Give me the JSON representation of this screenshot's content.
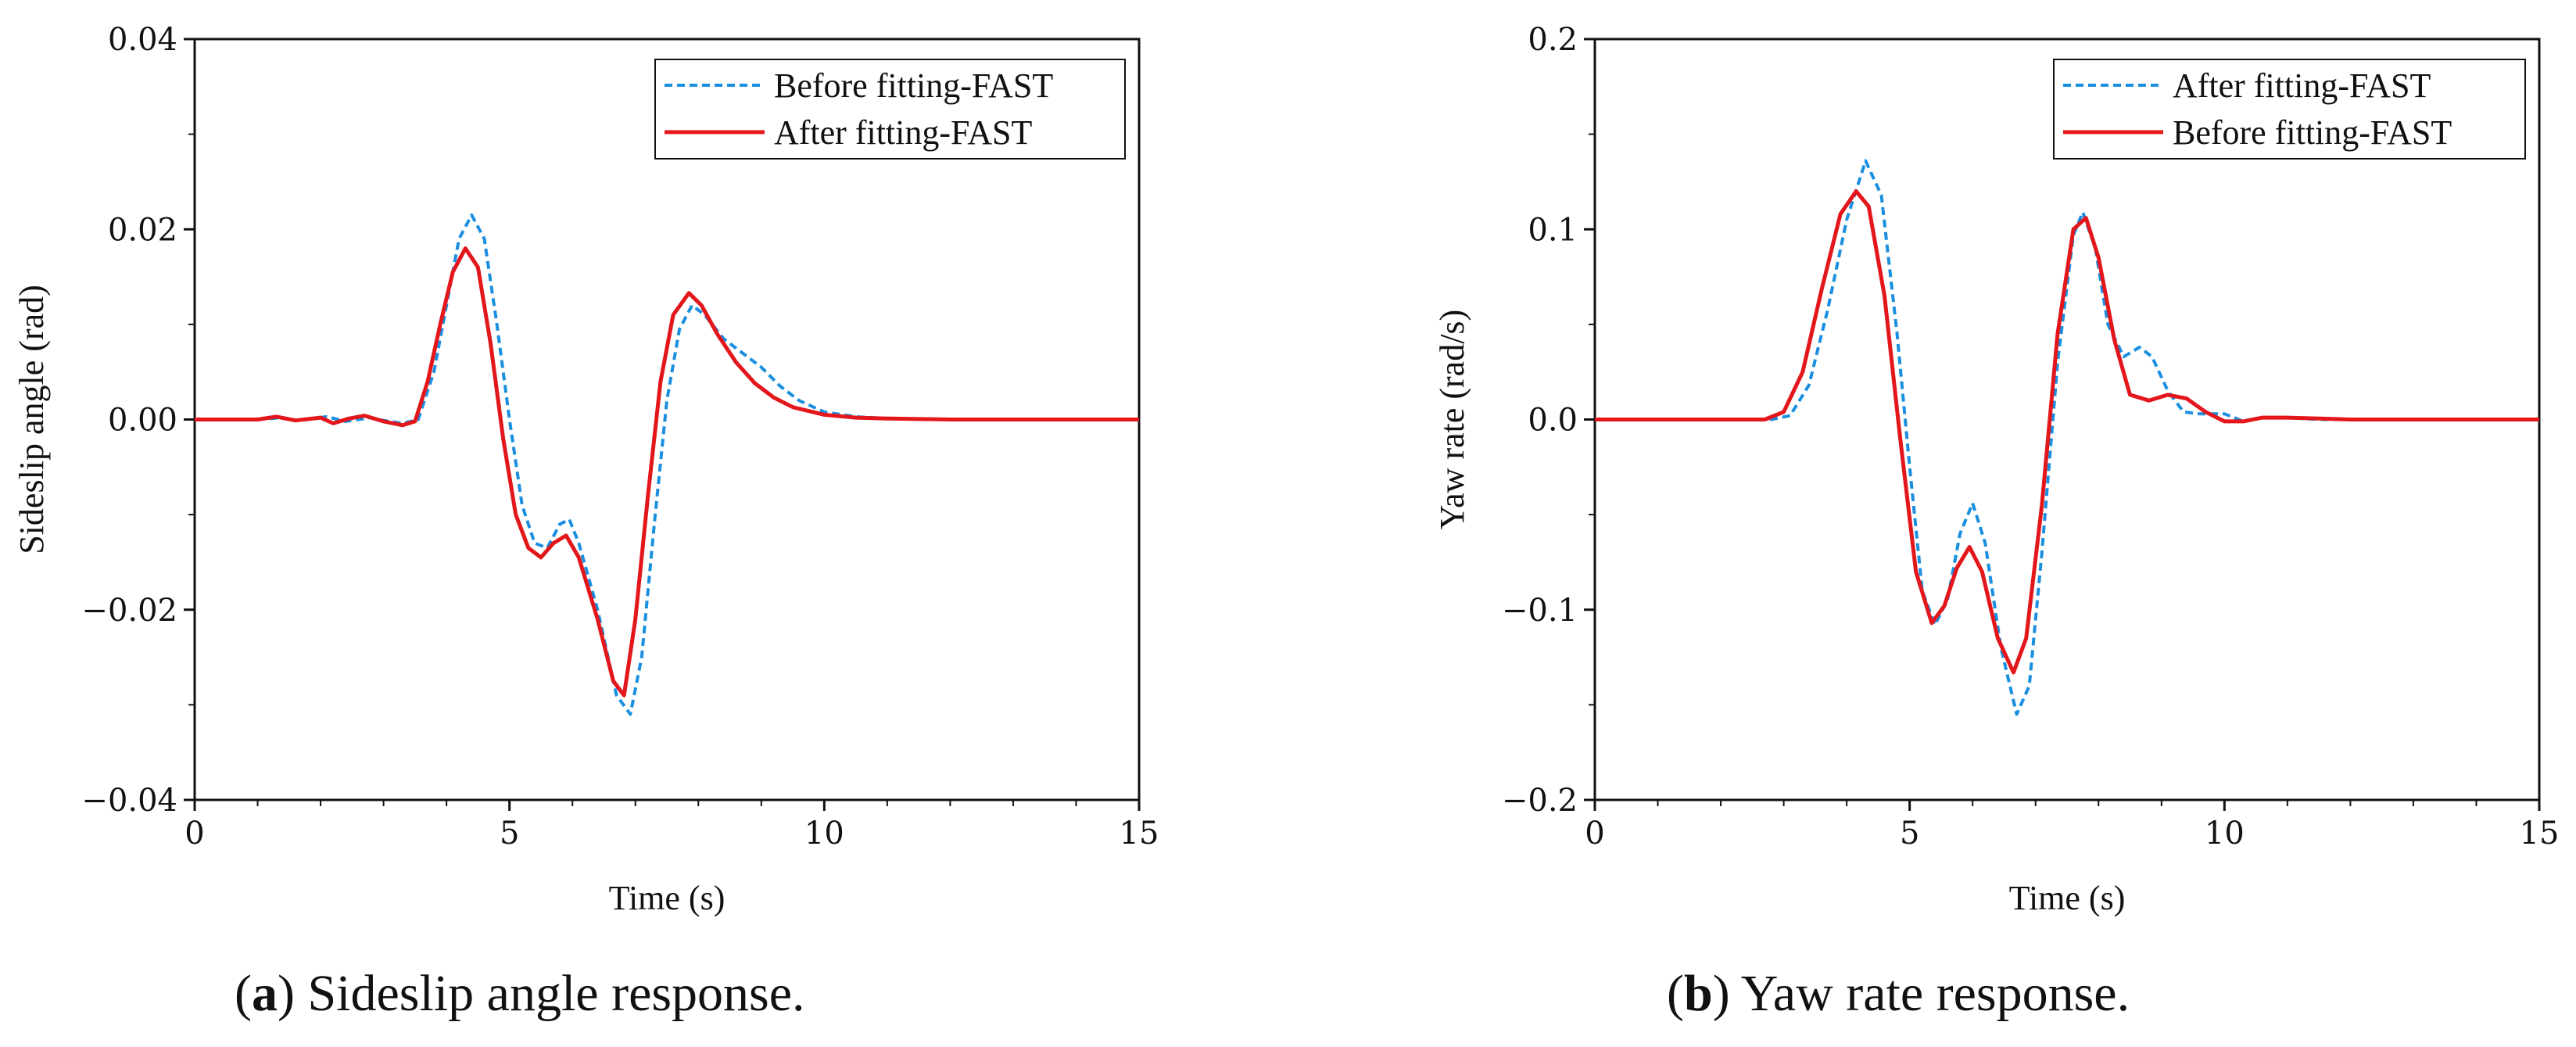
{
  "chart_data": [
    {
      "type": "line",
      "panel": "a",
      "xlabel": "Time (s)",
      "ylabel": "Sideslip angle (rad)",
      "xlim": [
        0,
        15
      ],
      "ylim": [
        -0.04,
        0.04
      ],
      "xticks": [
        0,
        5,
        10,
        15
      ],
      "xtick_labels": [
        "0",
        "5",
        "10",
        "15"
      ],
      "yticks": [
        -0.04,
        -0.02,
        0.0,
        0.02,
        0.04
      ],
      "ytick_labels": [
        "−0.04",
        "−0.02",
        "0.00",
        "0.02",
        "0.04"
      ],
      "legend_position": "top-right",
      "grid": false,
      "caption_letter": "a",
      "caption_text": " Sideslip angle response.",
      "series": [
        {
          "name": "Before fitting-FAST",
          "color": "#1a8fe0",
          "style": "dashed",
          "points": [
            [
              0,
              0
            ],
            [
              1.0,
              0
            ],
            [
              1.4,
              0.0002
            ],
            [
              1.6,
              -0.0001
            ],
            [
              2.1,
              0.0003
            ],
            [
              2.4,
              -0.0002
            ],
            [
              2.8,
              0.0002
            ],
            [
              3.0,
              -0.0001
            ],
            [
              3.3,
              -0.0004
            ],
            [
              3.55,
              0
            ],
            [
              3.8,
              0.005
            ],
            [
              4.0,
              0.012
            ],
            [
              4.2,
              0.019
            ],
            [
              4.4,
              0.0215
            ],
            [
              4.6,
              0.019
            ],
            [
              4.8,
              0.01
            ],
            [
              5.0,
              0.0
            ],
            [
              5.2,
              -0.009
            ],
            [
              5.4,
              -0.013
            ],
            [
              5.6,
              -0.0135
            ],
            [
              5.8,
              -0.011
            ],
            [
              5.95,
              -0.0105
            ],
            [
              6.1,
              -0.013
            ],
            [
              6.4,
              -0.02
            ],
            [
              6.7,
              -0.029
            ],
            [
              6.92,
              -0.031
            ],
            [
              7.1,
              -0.025
            ],
            [
              7.3,
              -0.011
            ],
            [
              7.5,
              0.002
            ],
            [
              7.7,
              0.0095
            ],
            [
              7.9,
              0.012
            ],
            [
              8.1,
              0.011
            ],
            [
              8.4,
              0.0085
            ],
            [
              8.7,
              0.007
            ],
            [
              9.0,
              0.0055
            ],
            [
              9.3,
              0.0035
            ],
            [
              9.6,
              0.002
            ],
            [
              10.0,
              0.0008
            ],
            [
              10.5,
              0.0003
            ],
            [
              11.0,
              0.0001
            ],
            [
              12,
              0
            ],
            [
              15,
              0
            ]
          ]
        },
        {
          "name": "After fitting-FAST",
          "color": "#e3161b",
          "style": "solid",
          "points": [
            [
              0,
              0
            ],
            [
              1.0,
              0
            ],
            [
              1.3,
              0.0003
            ],
            [
              1.6,
              -0.0001
            ],
            [
              2.0,
              0.0002
            ],
            [
              2.2,
              -0.0004
            ],
            [
              2.45,
              0.0001
            ],
            [
              2.7,
              0.0004
            ],
            [
              3.0,
              -0.0002
            ],
            [
              3.3,
              -0.0006
            ],
            [
              3.5,
              -0.0002
            ],
            [
              3.7,
              0.004
            ],
            [
              3.9,
              0.01
            ],
            [
              4.1,
              0.0155
            ],
            [
              4.3,
              0.018
            ],
            [
              4.5,
              0.016
            ],
            [
              4.7,
              0.008
            ],
            [
              4.9,
              -0.002
            ],
            [
              5.1,
              -0.01
            ],
            [
              5.3,
              -0.0135
            ],
            [
              5.5,
              -0.0145
            ],
            [
              5.7,
              -0.013
            ],
            [
              5.9,
              -0.0122
            ],
            [
              6.1,
              -0.0145
            ],
            [
              6.4,
              -0.021
            ],
            [
              6.65,
              -0.0275
            ],
            [
              6.82,
              -0.029
            ],
            [
              7.0,
              -0.021
            ],
            [
              7.2,
              -0.008
            ],
            [
              7.4,
              0.004
            ],
            [
              7.6,
              0.011
            ],
            [
              7.85,
              0.0133
            ],
            [
              8.05,
              0.012
            ],
            [
              8.3,
              0.009
            ],
            [
              8.6,
              0.006
            ],
            [
              8.9,
              0.0038
            ],
            [
              9.2,
              0.0023
            ],
            [
              9.5,
              0.0013
            ],
            [
              10.0,
              0.0005
            ],
            [
              10.5,
              0.0002
            ],
            [
              11.0,
              0.0001
            ],
            [
              12,
              0
            ],
            [
              15,
              0
            ]
          ]
        }
      ]
    },
    {
      "type": "line",
      "panel": "b",
      "xlabel": "Time (s)",
      "ylabel": "Yaw rate (rad/s)",
      "xlim": [
        0,
        15
      ],
      "ylim": [
        -0.2,
        0.2
      ],
      "xticks": [
        0,
        5,
        10,
        15
      ],
      "xtick_labels": [
        "0",
        "5",
        "10",
        "15"
      ],
      "yticks": [
        -0.2,
        -0.1,
        0.0,
        0.1,
        0.2
      ],
      "ytick_labels": [
        "−0.2",
        "−0.1",
        "0.0",
        "0.1",
        "0.2"
      ],
      "legend_position": "top-right",
      "grid": false,
      "caption_letter": "b",
      "caption_text": " Yaw rate response.",
      "series": [
        {
          "name": "After fitting-FAST",
          "color": "#1a8fe0",
          "style": "dashed",
          "points": [
            [
              0,
              0
            ],
            [
              2.8,
              0
            ],
            [
              3.1,
              0.002
            ],
            [
              3.4,
              0.018
            ],
            [
              3.7,
              0.058
            ],
            [
              4.0,
              0.105
            ],
            [
              4.3,
              0.136
            ],
            [
              4.55,
              0.118
            ],
            [
              4.8,
              0.045
            ],
            [
              5.0,
              -0.025
            ],
            [
              5.2,
              -0.09
            ],
            [
              5.4,
              -0.108
            ],
            [
              5.6,
              -0.095
            ],
            [
              5.8,
              -0.06
            ],
            [
              6.0,
              -0.044
            ],
            [
              6.2,
              -0.065
            ],
            [
              6.45,
              -0.12
            ],
            [
              6.7,
              -0.155
            ],
            [
              6.9,
              -0.14
            ],
            [
              7.1,
              -0.07
            ],
            [
              7.35,
              0.03
            ],
            [
              7.6,
              0.097
            ],
            [
              7.75,
              0.109
            ],
            [
              7.95,
              0.09
            ],
            [
              8.15,
              0.05
            ],
            [
              8.4,
              0.033
            ],
            [
              8.65,
              0.038
            ],
            [
              8.85,
              0.033
            ],
            [
              9.1,
              0.015
            ],
            [
              9.35,
              0.004
            ],
            [
              9.6,
              0.003
            ],
            [
              10.0,
              0.003
            ],
            [
              10.3,
              -0.001
            ],
            [
              10.6,
              0.001
            ],
            [
              11.0,
              0.001
            ],
            [
              11.5,
              0
            ],
            [
              15,
              0
            ]
          ]
        },
        {
          "name": "Before fitting-FAST",
          "color": "#e3161b",
          "style": "solid",
          "points": [
            [
              0,
              0
            ],
            [
              2.7,
              0
            ],
            [
              3.0,
              0.004
            ],
            [
              3.3,
              0.025
            ],
            [
              3.6,
              0.068
            ],
            [
              3.9,
              0.108
            ],
            [
              4.15,
              0.12
            ],
            [
              4.35,
              0.112
            ],
            [
              4.6,
              0.065
            ],
            [
              4.85,
              -0.01
            ],
            [
              5.1,
              -0.08
            ],
            [
              5.35,
              -0.107
            ],
            [
              5.55,
              -0.098
            ],
            [
              5.75,
              -0.078
            ],
            [
              5.95,
              -0.067
            ],
            [
              6.15,
              -0.08
            ],
            [
              6.4,
              -0.115
            ],
            [
              6.65,
              -0.133
            ],
            [
              6.85,
              -0.115
            ],
            [
              7.1,
              -0.045
            ],
            [
              7.35,
              0.045
            ],
            [
              7.6,
              0.1
            ],
            [
              7.8,
              0.106
            ],
            [
              8.0,
              0.085
            ],
            [
              8.25,
              0.042
            ],
            [
              8.5,
              0.013
            ],
            [
              8.8,
              0.01
            ],
            [
              9.1,
              0.013
            ],
            [
              9.4,
              0.011
            ],
            [
              9.7,
              0.004
            ],
            [
              10.0,
              -0.001
            ],
            [
              10.3,
              -0.001
            ],
            [
              10.6,
              0.001
            ],
            [
              11.0,
              0.001
            ],
            [
              11.5,
              0.0005
            ],
            [
              12,
              0
            ],
            [
              15,
              0
            ]
          ]
        }
      ]
    }
  ]
}
